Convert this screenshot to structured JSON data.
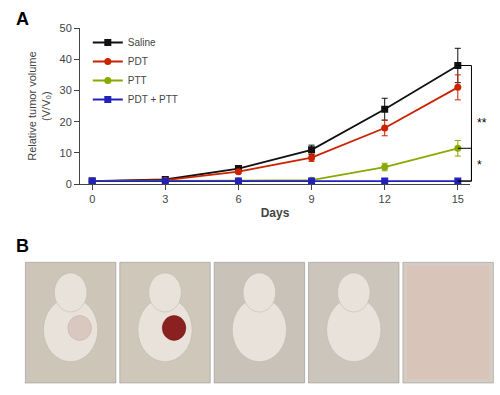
{
  "chart_data": {
    "type": "line",
    "x_label": "Days",
    "y_label": "Relative tumor volume\n(V/V₀)",
    "x": [
      0,
      3,
      6,
      9,
      12,
      15
    ],
    "series": [
      {
        "name": "Saline",
        "color": "#111111",
        "marker": "square",
        "values": [
          1.0,
          1.5,
          5.0,
          11.0,
          24.0,
          38.0
        ],
        "errors": [
          0.1,
          0.3,
          0.8,
          1.5,
          3.5,
          5.5
        ]
      },
      {
        "name": "PDT",
        "color": "#cc2200",
        "marker": "circle",
        "values": [
          1.0,
          1.3,
          4.0,
          8.5,
          18.0,
          31.0
        ],
        "errors": [
          0.1,
          0.2,
          0.5,
          1.2,
          2.5,
          4.0
        ]
      },
      {
        "name": "PTT",
        "color": "#88aa00",
        "marker": "circle",
        "values": [
          1.0,
          1.0,
          1.1,
          1.3,
          5.5,
          11.5
        ],
        "errors": [
          0.05,
          0.05,
          0.15,
          0.2,
          1.2,
          2.5
        ]
      },
      {
        "name": "PDT + PTT",
        "color": "#2222bb",
        "marker": "square",
        "values": [
          1.0,
          1.0,
          1.0,
          1.0,
          1.0,
          1.0
        ],
        "errors": [
          0.05,
          0.05,
          0.05,
          0.05,
          0.05,
          0.05
        ]
      }
    ],
    "xlim": [
      -0.5,
      15.5
    ],
    "xticks": [
      0,
      3,
      6,
      9,
      12,
      15
    ],
    "ylim": [
      0,
      50
    ],
    "yticks": [
      0,
      10,
      20,
      30,
      40,
      50
    ],
    "grid": false,
    "legend": "upper left",
    "annotations": [
      {
        "text": "A"
      },
      {
        "text": "B"
      },
      {
        "text": "**",
        "between": [
          "Saline",
          "PDT + PTT"
        ]
      },
      {
        "text": "*",
        "between": [
          "PTT",
          "PDT + PTT"
        ]
      }
    ]
  }
}
